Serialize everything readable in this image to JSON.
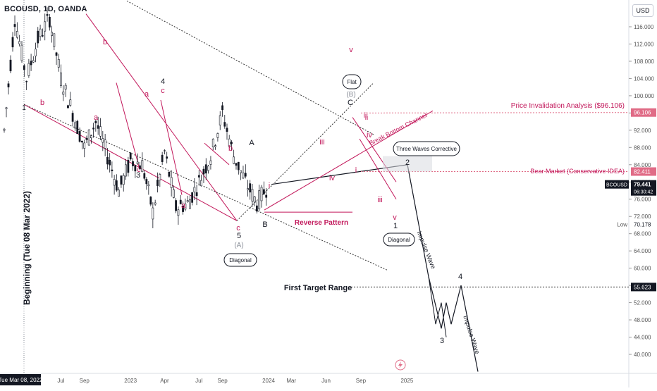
{
  "header": {
    "symbol_line": "BCOUSD, 1D, OANDA"
  },
  "currency_button": "USD",
  "price_axis": {
    "ticks": [
      116,
      112,
      108,
      104,
      100,
      96,
      92,
      88,
      84,
      80,
      76,
      72,
      68,
      64,
      60,
      56,
      52,
      48,
      44,
      40
    ],
    "tick_labels": [
      "116.000",
      "112.000",
      "108.000",
      "104.000",
      "100.000",
      "96.000",
      "92.000",
      "88.000",
      "84.000",
      "80.000",
      "76.000",
      "72.000",
      "68.000",
      "64.000",
      "60.000",
      "56.000",
      "52.000",
      "48.000",
      "44.000",
      "40.000"
    ],
    "badges": {
      "invalidation": {
        "text": "96.106",
        "value": 96.106,
        "color": "#e06b86"
      },
      "bear": {
        "text": "82.411",
        "value": 82.411,
        "color": "#e06b86"
      },
      "last_symbol": "BCOUSD",
      "last_price": "79.441",
      "countdown": "06:30:42",
      "last_value": 79.441,
      "low_label": "Low",
      "low_price": "70.178",
      "low_value": 70.178,
      "target": {
        "text": "55.623",
        "value": 55.623
      }
    }
  },
  "time_axis": {
    "labels": [
      "Jul",
      "Sep",
      "2023",
      "Apr",
      "Jul",
      "Sep",
      "2024",
      "Mar",
      "Jun",
      "Sep",
      "2025"
    ],
    "cursor_label": "Tue Mar 08, 2022"
  },
  "annotations": {
    "vertical_label": "Beginning (Tue 08 Mar 2022)",
    "price_invalidation": "Price Invalidation Analysis ($96.106)",
    "bear_market": "Bear Market (Conservative IDEA)",
    "first_target": "First Target Range",
    "break_bottom": "Break Bottom Channel",
    "reverse_pattern": "Reverse Pattern",
    "impulse_wave_1": "Impulse Wave",
    "impulse_wave_2": "Impulse Wave",
    "bubble_flat": "Flat",
    "bubble_three_waves": "Three Waves Corrective",
    "bubble_diagonal_1": "Diagonal",
    "bubble_diagonal_2": "Diagonal",
    "wave_labels_black": [
      "1",
      "4",
      "3",
      "5",
      "A",
      "B",
      "C",
      "1",
      "2",
      "4",
      "3"
    ],
    "wave_labels_red": [
      "b",
      "a",
      "b",
      "a",
      "c",
      "c",
      "a",
      "b",
      "c",
      "i",
      "ii",
      "iii",
      "iv",
      "i",
      "ii",
      "iii",
      "iv",
      "v",
      "v"
    ],
    "wave_labels_grey": [
      "(A)",
      "(B)"
    ]
  },
  "colors": {
    "candle": "#131722",
    "red": "#c2185b",
    "pink_line": "#e06b86",
    "black_line": "#333333",
    "text": "#131722",
    "axis_text": "#555555"
  },
  "chart_data": {
    "type": "candlestick",
    "title": "BCOUSD, 1D, OANDA",
    "ylabel": "",
    "ylim": [
      36,
      120
    ],
    "x_tick_labels": [
      "Jul",
      "Sep",
      "2023",
      "Apr",
      "Jul",
      "Sep",
      "2024",
      "Mar",
      "Jun",
      "Sep",
      "2025"
    ],
    "price_path": [
      {
        "date": "2022-02",
        "close": 92
      },
      {
        "date": "2022-03",
        "close": 118
      },
      {
        "date": "2022-04",
        "close": 104
      },
      {
        "date": "2022-05",
        "close": 113
      },
      {
        "date": "2022-06",
        "close": 118
      },
      {
        "date": "2022-07",
        "close": 104
      },
      {
        "date": "2022-08",
        "close": 96
      },
      {
        "date": "2022-09",
        "close": 88
      },
      {
        "date": "2022-10",
        "close": 94
      },
      {
        "date": "2022-11",
        "close": 86
      },
      {
        "date": "2022-12",
        "close": 78
      },
      {
        "date": "2023-01",
        "close": 85
      },
      {
        "date": "2023-02",
        "close": 84
      },
      {
        "date": "2023-03",
        "close": 73
      },
      {
        "date": "2023-04",
        "close": 87
      },
      {
        "date": "2023-05",
        "close": 74
      },
      {
        "date": "2023-06",
        "close": 75
      },
      {
        "date": "2023-07",
        "close": 80
      },
      {
        "date": "2023-08",
        "close": 86
      },
      {
        "date": "2023-09",
        "close": 96
      },
      {
        "date": "2023-10",
        "close": 86
      },
      {
        "date": "2023-11",
        "close": 80
      },
      {
        "date": "2023-12",
        "close": 75
      },
      {
        "date": "2024-01",
        "close": 79.441
      }
    ],
    "projection": [
      {
        "label": "2",
        "value": 84
      },
      {
        "label": "3",
        "value": 46
      },
      {
        "label": "4",
        "value": 56
      },
      {
        "label": "",
        "value": 36
      }
    ],
    "levels": [
      {
        "label": "Price Invalidation Analysis ($96.106)",
        "value": 96.106
      },
      {
        "label": "Bear Market (Conservative IDEA)",
        "value": 82.411
      },
      {
        "label": "First Target Range",
        "value": 55.623
      },
      {
        "label": "Low",
        "value": 70.178
      }
    ]
  }
}
